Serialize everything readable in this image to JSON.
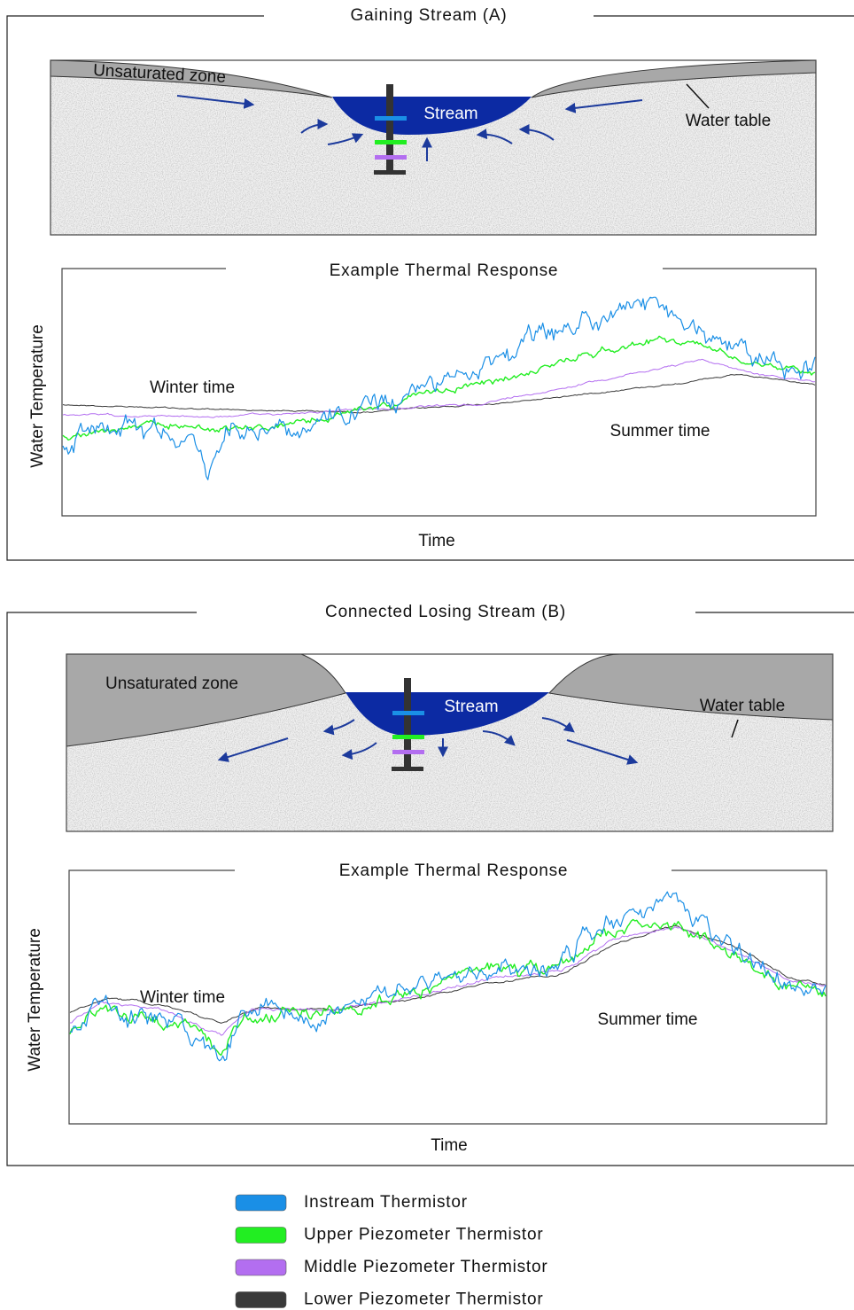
{
  "panel_a": {
    "title": "Gaining Stream (A)",
    "diagram": {
      "unsaturated_zone": "Unsaturated zone",
      "stream": "Stream",
      "water_table": "Water table"
    },
    "chart": {
      "title": "Example Thermal Response",
      "y_label": "Water Temperature",
      "x_label": "Time",
      "winter_label": "Winter time",
      "summer_label": "Summer time"
    }
  },
  "panel_b": {
    "title": "Connected Losing Stream (B)",
    "diagram": {
      "unsaturated_zone": "Unsaturated zone",
      "stream": "Stream",
      "water_table": "Water table"
    },
    "chart": {
      "title": "Example Thermal Response",
      "y_label": "Water Temperature",
      "x_label": "Time",
      "winter_label": "Winter time",
      "summer_label": "Summer time"
    }
  },
  "legend": [
    {
      "label": "Instream Thermistor",
      "color": "#1a8fe6"
    },
    {
      "label": "Upper Piezometer Thermistor",
      "color": "#22ee22"
    },
    {
      "label": "Middle Piezometer Thermistor",
      "color": "#b36ef0"
    },
    {
      "label": "Lower Piezometer Thermistor",
      "color": "#3a3a3a"
    }
  ]
}
